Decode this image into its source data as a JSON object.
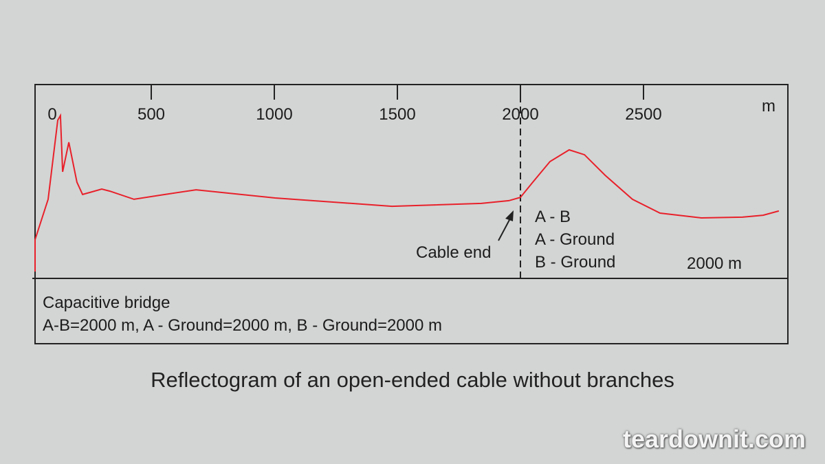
{
  "chart_data": {
    "type": "line",
    "title": "Reflectogram of an open-ended cable without branches",
    "xlabel": "m",
    "ylabel": "",
    "xlim": [
      0,
      3070
    ],
    "ylim": [
      0,
      100
    ],
    "x_ticks": [
      0,
      500,
      1000,
      1500,
      2000,
      2500
    ],
    "x_tick_labels": [
      "0",
      "500",
      "1000",
      "1500",
      "2000",
      "2500"
    ],
    "grid": false,
    "line_color": "#e8202a",
    "series": [
      {
        "x": [
          0,
          28,
          81,
          120,
          131,
          140,
          165,
          198,
          221,
          249,
          299,
          332,
          430,
          556,
          682,
          1003,
          1478,
          1841,
          1953,
          2000,
          2050,
          2120,
          2198,
          2260,
          2344,
          2455,
          2567,
          2735,
          2902,
          2986,
          3050
        ],
        "y": [
          3.5,
          20,
          40.8,
          81.6,
          84,
          55,
          70.2,
          49.6,
          43.3,
          44.3,
          46.1,
          45,
          40.8,
          43.3,
          45.7,
          41.5,
          37.2,
          38.7,
          40.1,
          41.8,
          49.6,
          60.3,
          66.3,
          63.8,
          53.2,
          40.8,
          33.7,
          31.2,
          31.6,
          32.6,
          34.8
        ]
      }
    ],
    "marker_x": 2000,
    "annotations": {
      "cable_end": "Cable end",
      "pairs": [
        "A - B",
        "A - Ground",
        "B - Ground"
      ],
      "distance": "2000 m"
    },
    "info": {
      "line1": "Capacitive bridge",
      "line2": "A-B=2000 m, A - Ground=2000 m, B - Ground=2000 m"
    }
  },
  "watermark": "teardownit.com"
}
